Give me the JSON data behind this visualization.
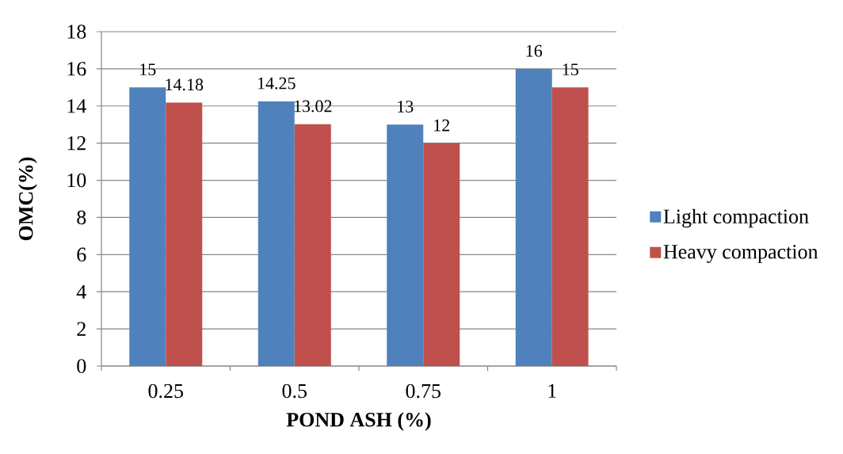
{
  "chart_data": {
    "type": "bar",
    "xlabel": "POND ASH (%)",
    "ylabel": "OMC(%)",
    "categories": [
      "0.25",
      "0.5",
      "0.75",
      "1"
    ],
    "series": [
      {
        "name": "Light compaction",
        "color": "#4f81bd",
        "values": [
          15,
          14.25,
          13,
          16
        ]
      },
      {
        "name": "Heavy compaction",
        "color": "#c0504d",
        "values": [
          14.18,
          13.02,
          12,
          15
        ]
      }
    ],
    "ylim": [
      0,
      18
    ],
    "yticks": [
      0,
      2,
      4,
      6,
      8,
      10,
      12,
      14,
      16,
      18
    ],
    "grid": "y",
    "legend": "right",
    "data_labels": true
  }
}
